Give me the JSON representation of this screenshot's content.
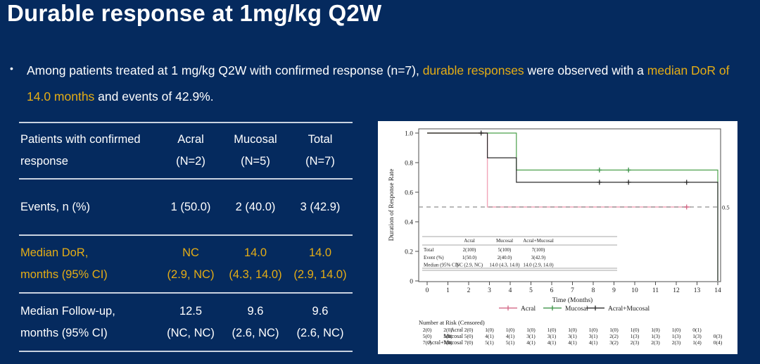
{
  "slide": {
    "background_color": "#052a5e",
    "accent_color": "#e5ad15",
    "title": "Durable response at 1mg/kg Q2W",
    "bullet_segments": [
      {
        "text": "Among patients treated at 1 mg/kg Q2W with confirmed response (n=7), ",
        "highlighted": false
      },
      {
        "text": "durable responses",
        "highlighted": true
      },
      {
        "text": " were observed with a ",
        "highlighted": false
      },
      {
        "text": "median DoR of 14.0 months",
        "highlighted": true
      },
      {
        "text": " and events of 42.9%.",
        "highlighted": false
      }
    ]
  },
  "summary_table": {
    "header_label": "Patients with confirmed\nresponse",
    "columns": [
      "Acral\n(N=2)",
      "Mucosal\n(N=5)",
      "Total\n(N=7)"
    ],
    "rows": [
      {
        "label": "Events, n (%)",
        "values": [
          "1 (50.0)",
          "2 (40.0)",
          "3 (42.9)"
        ],
        "highlighted": false
      },
      {
        "label": "Median DoR,\nmonths (95% CI)",
        "values": [
          "NC\n(2.9, NC)",
          "14.0\n(4.3, 14.0)",
          "14.0\n(2.9, 14.0)"
        ],
        "highlighted": true
      },
      {
        "label": "Median Follow-up,\nmonths (95% CI)",
        "values": [
          "12.5\n(NC, NC)",
          "9.6\n(2.6, NC)",
          "9.6\n(2.6, NC)"
        ],
        "highlighted": false
      }
    ]
  },
  "chart_data": {
    "type": "line",
    "subtype": "kaplan-meier-step",
    "xlabel": "Time (Months)",
    "ylabel": "Duration of Response Rate",
    "xlim": [
      0,
      14
    ],
    "ylim": [
      0,
      1.0
    ],
    "xticks": [
      "0",
      "1",
      "2",
      "3",
      "4",
      "5",
      "6",
      "7",
      "8",
      "9",
      "10",
      "11",
      "12",
      "13",
      "14"
    ],
    "yticks": [
      {
        "value": 0,
        "label": "0"
      },
      {
        "value": 0.2,
        "label": "0.2"
      },
      {
        "value": 0.4,
        "label": "0.4"
      },
      {
        "value": 0.6,
        "label": "0.6"
      },
      {
        "value": 0.8,
        "label": "0.8"
      },
      {
        "value": 1.0,
        "label": "1.0"
      }
    ],
    "reference_line": {
      "y": 0.5,
      "label": "0.5",
      "style": "dashed",
      "color": "#8f8f8f"
    },
    "series": [
      {
        "name": "Acral",
        "color": "#f2a5b9",
        "label_color": "#cf5b7c",
        "steps": [
          [
            0,
            1.0
          ],
          [
            2.9,
            1.0
          ],
          [
            2.9,
            0.5
          ],
          [
            12.7,
            0.5
          ]
        ],
        "censors": [
          [
            12.5,
            0.5
          ]
        ]
      },
      {
        "name": "Mucosal",
        "color": "#4ba04b",
        "label_color": "#2e8b3a",
        "steps": [
          [
            0,
            1.0
          ],
          [
            4.3,
            1.0
          ],
          [
            4.3,
            0.75
          ],
          [
            14,
            0.75
          ],
          [
            14,
            0
          ]
        ],
        "censors": [
          [
            8.3,
            0.75
          ],
          [
            9.7,
            0.75
          ]
        ]
      },
      {
        "name": "Acral+Mucosal",
        "color": "#2b2b2b",
        "label_color": "#1a1a1a",
        "steps": [
          [
            0,
            1.0
          ],
          [
            2.9,
            1.0
          ],
          [
            2.9,
            0.833
          ],
          [
            4.3,
            0.833
          ],
          [
            4.3,
            0.667
          ],
          [
            14,
            0.667
          ],
          [
            14,
            0
          ]
        ],
        "censors": [
          [
            2.6,
            1.0
          ],
          [
            8.3,
            0.667
          ],
          [
            9.7,
            0.667
          ],
          [
            12.5,
            0.667
          ]
        ]
      }
    ],
    "inset_table": {
      "columns": [
        "",
        "Acral",
        "Mucosal",
        "Acral+Mucosal"
      ],
      "rows": [
        [
          "Total",
          "2(100)",
          "5(100)",
          "7(100)"
        ],
        [
          "Event (%)",
          "1(50.0)",
          "2(40.0)",
          "3(42.9)"
        ],
        [
          "Median (95% CI)",
          "NC (2.9, NC)",
          "14.0 (4.3, 14.0)",
          "14.0 (2.9, 14.0)"
        ]
      ]
    },
    "risk_table": {
      "title": "Number at Risk (Censored)",
      "rows": [
        {
          "name": "Acral",
          "values": [
            "2(0)",
            "2(0)",
            "2(0)",
            "1(0)",
            "1(0)",
            "1(0)",
            "1(0)",
            "1(0)",
            "1(0)",
            "1(0)",
            "1(0)",
            "1(0)",
            "1(0)",
            "0(1)",
            ""
          ]
        },
        {
          "name": "Mucosal",
          "values": [
            "5(0)",
            "5(0)",
            "5(0)",
            "4(1)",
            "4(1)",
            "3(1)",
            "3(1)",
            "3(1)",
            "3(1)",
            "2(2)",
            "1(3)",
            "1(3)",
            "1(3)",
            "1(3)",
            "0(3)"
          ]
        },
        {
          "name": "Acral+Mucosal",
          "values": [
            "7(0)",
            "7(0)",
            "7(0)",
            "5(1)",
            "5(1)",
            "4(1)",
            "4(1)",
            "4(1)",
            "4(1)",
            "3(2)",
            "2(3)",
            "2(3)",
            "2(3)",
            "1(4)",
            "0(4)"
          ]
        }
      ]
    },
    "legend": {
      "position": "bottom",
      "entries": [
        "Acral",
        "Mucosal",
        "Acral+Mucosal"
      ]
    },
    "grid": false
  }
}
